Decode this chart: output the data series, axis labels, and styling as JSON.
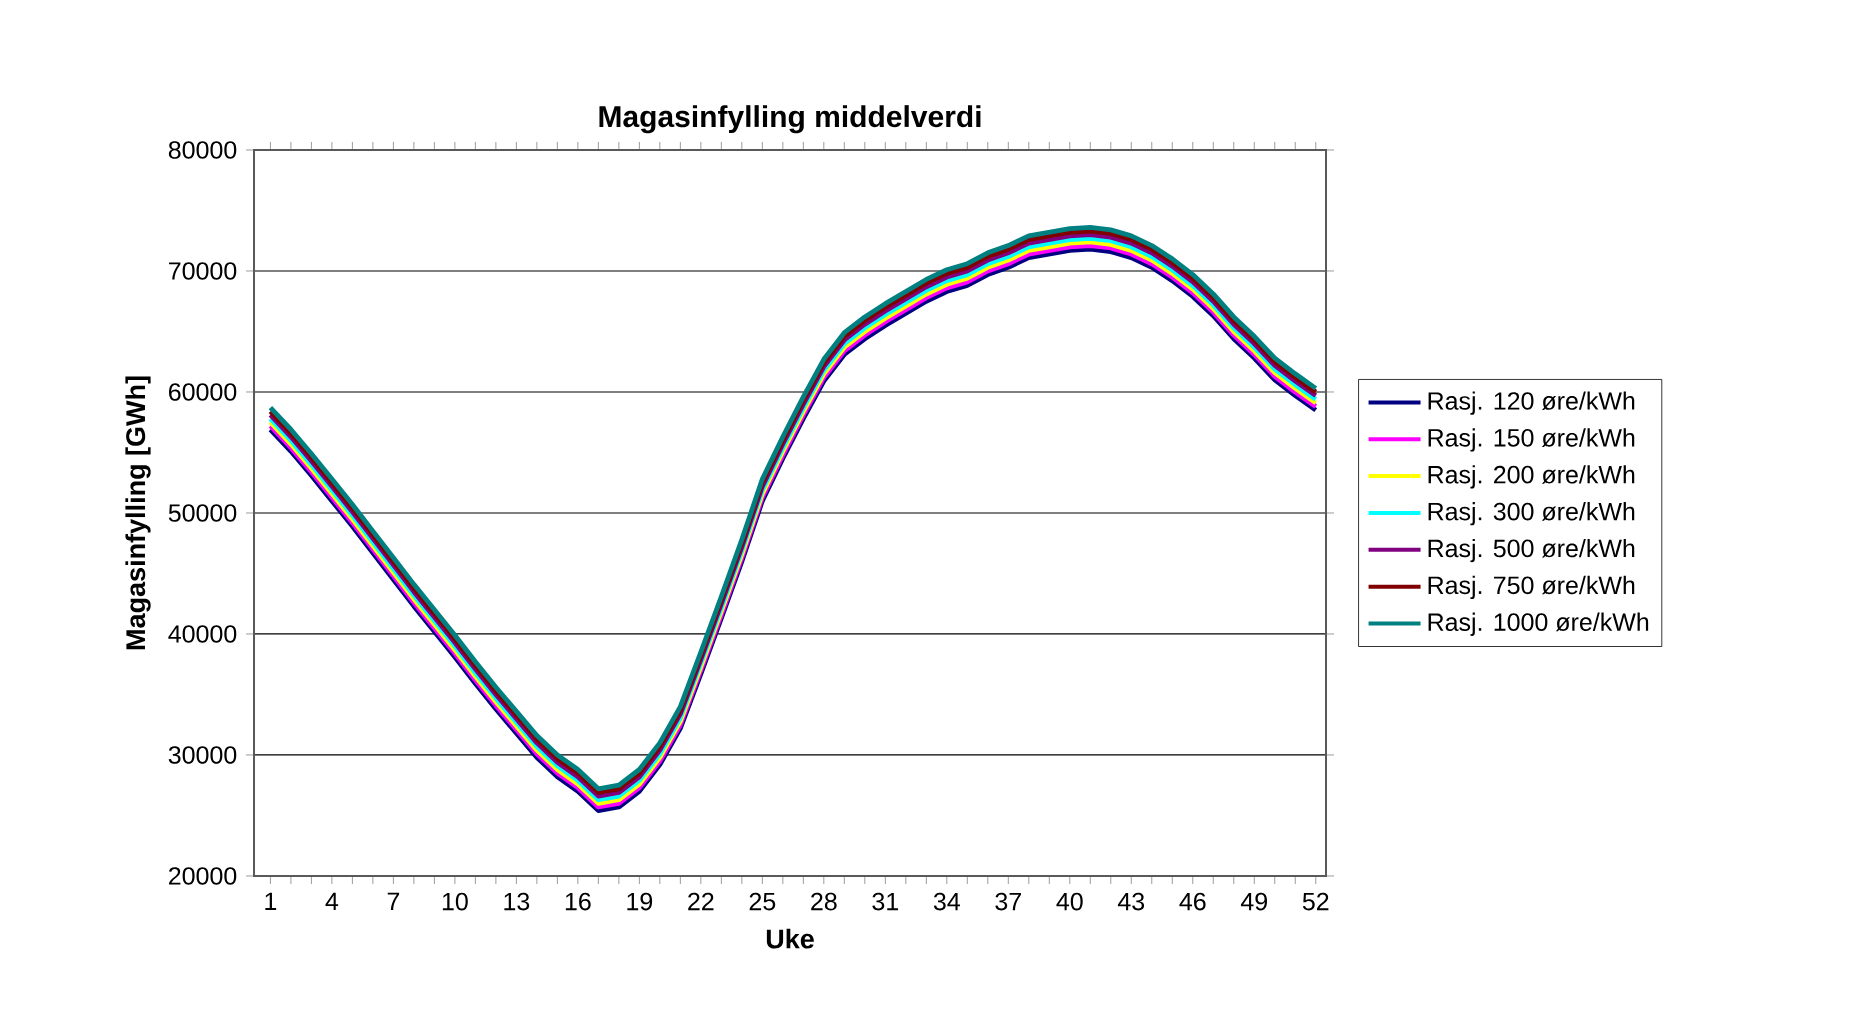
{
  "chart_data": {
    "type": "line",
    "title": "Magasinfylling middelverdi",
    "xlabel": "Uke",
    "ylabel": "Magasinfylling [GWh]",
    "categories": [
      "1",
      null,
      null,
      "4",
      null,
      null,
      "7",
      null,
      null,
      "10",
      null,
      null,
      "13",
      null,
      null,
      "16",
      null,
      null,
      "19",
      null,
      null,
      "22",
      null,
      null,
      "25",
      null,
      null,
      "28",
      null,
      null,
      "31",
      null,
      null,
      "34",
      null,
      null,
      "37",
      null,
      null,
      "40",
      null,
      null,
      "43",
      null,
      null,
      "46",
      null,
      null,
      "49",
      null,
      null,
      "52"
    ],
    "ylim": [
      20000,
      80000
    ],
    "yticks": [
      20000,
      30000,
      40000,
      50000,
      60000,
      70000,
      80000
    ],
    "grid": "y",
    "legend": "right",
    "series": [
      {
        "name": "Rasj. 120 øre/kWh",
        "color": "#000080",
        "values": [
          56900,
          55100,
          53100,
          51000,
          48900,
          46700,
          44500,
          42300,
          40200,
          38100,
          35900,
          33800,
          31800,
          29800,
          28200,
          27000,
          25400,
          25700,
          27000,
          29200,
          32200,
          36700,
          41300,
          46000,
          51000,
          54500,
          57800,
          60900,
          63100,
          64400,
          65500,
          66500,
          67500,
          68300,
          68800,
          69700,
          70300,
          71100,
          71400,
          71700,
          71800,
          71600,
          71100,
          70300,
          69200,
          67900,
          66300,
          64400,
          62800,
          61000,
          59700,
          58500
        ]
      },
      {
        "name": "Rasj. 150 øre/kWh",
        "color": "#ff00ff",
        "values": [
          57200,
          55400,
          53400,
          51300,
          49200,
          47000,
          44800,
          42600,
          40500,
          38400,
          36200,
          34100,
          32100,
          30100,
          28500,
          27300,
          25700,
          26000,
          27300,
          29500,
          32500,
          37000,
          41600,
          46300,
          51300,
          54800,
          58100,
          61200,
          63400,
          64700,
          65800,
          66800,
          67800,
          68600,
          69100,
          70000,
          70600,
          71400,
          71700,
          72000,
          72100,
          71900,
          71400,
          70600,
          69500,
          68200,
          66600,
          64700,
          63100,
          61300,
          60000,
          58800
        ]
      },
      {
        "name": "Rasj. 200 øre/kWh",
        "color": "#ffff00",
        "values": [
          57500,
          55700,
          53700,
          51600,
          49500,
          47300,
          45100,
          42900,
          40800,
          38700,
          36500,
          34400,
          32400,
          30400,
          28800,
          27600,
          26000,
          26300,
          27600,
          29800,
          32800,
          37300,
          41900,
          46600,
          51600,
          55100,
          58400,
          61500,
          63700,
          65000,
          66100,
          67100,
          68100,
          68900,
          69400,
          70300,
          70900,
          71700,
          72000,
          72300,
          72400,
          72200,
          71700,
          70900,
          69800,
          68500,
          66900,
          65000,
          63400,
          61600,
          60300,
          59100
        ]
      },
      {
        "name": "Rasj. 300 øre/kWh",
        "color": "#00ffff",
        "values": [
          57800,
          56000,
          54000,
          51900,
          49800,
          47600,
          45400,
          43200,
          41100,
          39000,
          36800,
          34700,
          32700,
          30700,
          29100,
          27900,
          26300,
          26600,
          27900,
          30100,
          33100,
          37600,
          42200,
          46900,
          51900,
          55400,
          58700,
          61800,
          64000,
          65300,
          66400,
          67400,
          68400,
          69200,
          69700,
          70600,
          71200,
          72000,
          72300,
          72600,
          72700,
          72500,
          72000,
          71200,
          70100,
          68800,
          67200,
          65300,
          63700,
          61900,
          60600,
          59400
        ]
      },
      {
        "name": "Rasj. 500 øre/kWh",
        "color": "#800080",
        "values": [
          58100,
          56300,
          54300,
          52200,
          50100,
          47900,
          45700,
          43500,
          41400,
          39300,
          37100,
          35000,
          33000,
          31000,
          29400,
          28200,
          26600,
          26900,
          28200,
          30400,
          33400,
          37900,
          42500,
          47200,
          52200,
          55700,
          59000,
          62100,
          64300,
          65600,
          66700,
          67700,
          68700,
          69500,
          70000,
          70900,
          71500,
          72300,
          72600,
          72900,
          73000,
          72800,
          72300,
          71500,
          70400,
          69100,
          67500,
          65600,
          64000,
          62200,
          60900,
          59700
        ]
      },
      {
        "name": "Rasj. 750 øre/kWh",
        "color": "#800000",
        "values": [
          58400,
          56600,
          54600,
          52500,
          50400,
          48200,
          46000,
          43800,
          41700,
          39600,
          37400,
          35300,
          33300,
          31300,
          29700,
          28500,
          26900,
          27200,
          28500,
          30700,
          33700,
          38200,
          42800,
          47500,
          52500,
          56000,
          59300,
          62400,
          64600,
          65900,
          67000,
          68000,
          69000,
          69800,
          70300,
          71200,
          71800,
          72600,
          72900,
          73200,
          73300,
          73100,
          72600,
          71800,
          70700,
          69400,
          67800,
          65900,
          64300,
          62500,
          61200,
          60000
        ]
      },
      {
        "name": "Rasj. 1000 øre/kWh",
        "color": "#008080",
        "values": [
          58700,
          56900,
          54900,
          52800,
          50700,
          48500,
          46300,
          44100,
          42000,
          39900,
          37700,
          35600,
          33600,
          31600,
          30000,
          28800,
          27200,
          27500,
          28800,
          31000,
          34000,
          38500,
          43100,
          47800,
          52800,
          56300,
          59600,
          62700,
          64900,
          66200,
          67300,
          68300,
          69300,
          70100,
          70600,
          71500,
          72100,
          72900,
          73200,
          73500,
          73600,
          73400,
          72900,
          72100,
          71000,
          69700,
          68100,
          66200,
          64600,
          62800,
          61500,
          60300
        ]
      }
    ]
  }
}
